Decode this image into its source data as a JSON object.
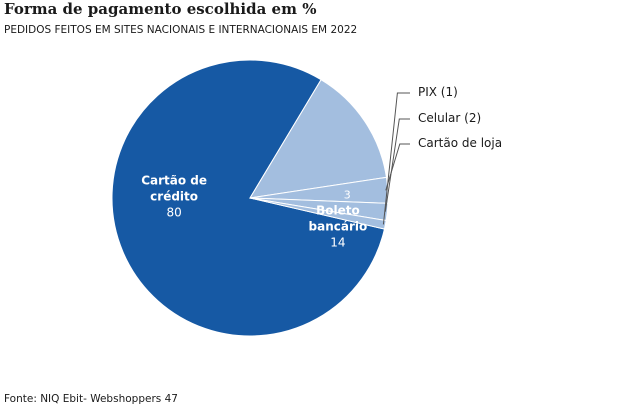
{
  "header": {
    "title": "Forma de pagamento escolhida em %",
    "subtitle": "PEDIDOS FEITOS EM SITES NACIONAIS E INTERNACIONAIS EM 2022"
  },
  "footer": {
    "source": "Fonte: NIQ Ebit- Webshoppers 47"
  },
  "colors": {
    "dark_blue": "#1659a4",
    "light_blue": "#a3bedf",
    "leader_line": "#555555",
    "slice_border": "#ffffff"
  },
  "chart_data": {
    "type": "pie",
    "title": "Forma de pagamento escolhida em %",
    "subtitle": "PEDIDOS FEITOS EM SITES NACIONAIS E INTERNACIONAIS EM 2022",
    "slices": [
      {
        "label_lines": [
          "Cartão de",
          "crédito"
        ],
        "value": 80,
        "value_label": "80",
        "color": "#1659a4",
        "label_position": "inside"
      },
      {
        "label_lines": [
          "Boleto",
          "bancário"
        ],
        "value": 14,
        "value_label": "14",
        "color": "#a3bedf",
        "label_position": "inside"
      },
      {
        "label_lines": [
          "Cartão de loja"
        ],
        "value": 3,
        "value_label": "3",
        "color": "#a3bedf",
        "label_position": "outside"
      },
      {
        "label_lines": [
          "Celular (2)"
        ],
        "value": 2,
        "value_label": "",
        "color": "#a3bedf",
        "label_position": "outside"
      },
      {
        "label_lines": [
          "PIX (1)"
        ],
        "value": 1,
        "value_label": "",
        "color": "#a3bedf",
        "label_position": "outside"
      }
    ]
  }
}
